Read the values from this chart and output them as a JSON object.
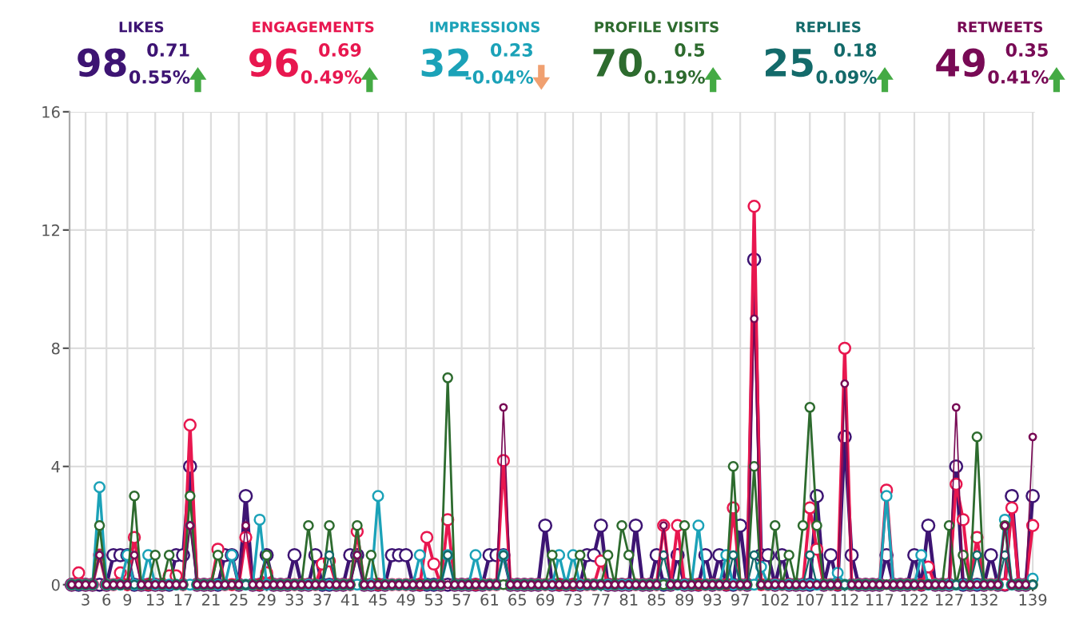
{
  "chart_data": {
    "type": "line",
    "marker": "circle",
    "line_style": "solid",
    "grid": true,
    "legend": "top",
    "categories": [
      null,
      null,
      "3",
      null,
      null,
      "6",
      null,
      null,
      "9",
      null,
      null,
      null,
      "13",
      null,
      null,
      null,
      "17",
      null,
      null,
      null,
      "21",
      null,
      null,
      null,
      "25",
      null,
      null,
      null,
      "29",
      null,
      null,
      null,
      "33",
      null,
      null,
      null,
      "37",
      null,
      null,
      null,
      "41",
      null,
      null,
      null,
      "45",
      null,
      null,
      null,
      "49",
      null,
      null,
      null,
      "53",
      null,
      null,
      null,
      "57",
      null,
      null,
      null,
      "61",
      null,
      null,
      null,
      "65",
      null,
      null,
      null,
      "69",
      null,
      null,
      null,
      "73",
      null,
      null,
      null,
      "77",
      null,
      null,
      null,
      "81",
      null,
      null,
      null,
      "85",
      null,
      null,
      null,
      "89",
      null,
      null,
      null,
      "93",
      null,
      null,
      null,
      "97",
      null,
      null,
      null,
      null,
      "102",
      null,
      null,
      null,
      null,
      "107",
      null,
      null,
      null,
      null,
      "112",
      null,
      null,
      null,
      null,
      "117",
      null,
      null,
      null,
      null,
      "122",
      null,
      null,
      null,
      null,
      "127",
      null,
      null,
      null,
      null,
      "132",
      null,
      null,
      null,
      null,
      null,
      null,
      "139"
    ],
    "ylim": [
      0,
      16
    ],
    "yticks": [
      0,
      4,
      8,
      12,
      16
    ],
    "series": [
      {
        "name": "LIKES",
        "color": "#3d1473",
        "values": [
          0,
          0,
          0,
          0,
          0,
          0,
          1,
          1,
          1,
          0,
          0,
          0,
          0,
          0,
          0,
          1,
          1,
          4,
          0,
          0,
          0,
          0,
          1,
          1,
          0,
          3,
          0,
          0,
          1,
          0,
          0,
          0,
          1,
          0,
          0,
          1,
          0,
          0,
          0,
          0,
          1,
          1,
          0,
          0,
          0,
          0,
          1,
          1,
          1,
          0,
          0,
          0,
          0,
          0,
          0,
          0,
          0,
          0,
          0,
          0,
          1,
          1,
          1,
          0,
          0,
          0,
          0,
          0,
          2,
          0,
          0,
          0,
          0,
          0,
          1,
          1,
          2,
          0,
          0,
          0,
          0,
          2,
          0,
          0,
          1,
          0,
          0,
          1,
          0,
          0,
          0,
          1,
          0,
          1,
          0,
          0,
          2,
          0,
          11,
          1,
          1,
          0,
          1,
          0,
          0,
          0,
          0,
          3,
          0,
          1,
          0,
          5,
          1,
          0,
          0,
          0,
          0,
          1,
          0,
          0,
          0,
          1,
          0,
          2,
          0,
          0,
          0,
          4,
          0,
          0,
          0,
          0,
          1,
          0,
          0,
          3,
          0,
          0,
          3
        ]
      },
      {
        "name": "ENGAGEMENTS",
        "color": "#e8174f",
        "values": [
          0,
          0.4,
          0,
          0,
          1,
          0,
          0,
          0.4,
          0,
          1.6,
          0,
          0,
          0,
          0,
          0.3,
          0.3,
          0,
          5.4,
          0,
          0,
          0,
          1.2,
          0,
          0,
          0,
          1.6,
          0,
          0,
          0.4,
          0,
          0,
          0,
          0,
          0,
          0,
          0,
          0.7,
          0.8,
          0,
          0,
          0,
          1.8,
          0,
          0,
          0,
          0,
          0,
          0,
          0,
          0,
          0,
          1.6,
          0.7,
          0,
          2.2,
          0,
          0,
          0,
          0,
          0,
          0,
          0,
          4.2,
          0,
          0,
          0,
          0,
          0,
          0,
          0,
          0,
          0,
          0,
          0,
          0,
          0,
          0.8,
          0,
          0,
          0,
          0,
          0,
          0,
          0,
          0,
          2,
          0,
          2,
          0,
          0,
          0,
          0,
          0,
          0,
          0,
          2.6,
          0,
          0,
          12.8,
          0,
          0,
          0,
          0,
          0,
          0,
          0,
          2.6,
          1.2,
          0,
          0,
          0,
          8,
          0,
          0,
          0,
          0,
          0,
          3.2,
          0,
          0,
          0,
          0,
          0,
          0.6,
          0,
          0,
          0,
          3.4,
          2.2,
          0,
          1.6,
          0,
          0,
          0,
          0,
          2.6,
          0,
          0,
          2
        ]
      },
      {
        "name": "IMPRESSIONS",
        "color": "#1ba2b8",
        "values": [
          0,
          0,
          0,
          0,
          3.3,
          0,
          0,
          0,
          1,
          0,
          0,
          1,
          0,
          0,
          0,
          0,
          0,
          0,
          0,
          0,
          0,
          0,
          0,
          1,
          0,
          0,
          0,
          2.2,
          0,
          0,
          0,
          0,
          0,
          0,
          0,
          0,
          0,
          0,
          0,
          0,
          0,
          0,
          0,
          0,
          3,
          0,
          0,
          0,
          0,
          0,
          1,
          0,
          0,
          0,
          1,
          0,
          0,
          0,
          1,
          0,
          0,
          0,
          1,
          0,
          0,
          0,
          0,
          0,
          0,
          0,
          1,
          0,
          1,
          0,
          0,
          0,
          0,
          0,
          0,
          0,
          0,
          0,
          0,
          0,
          0,
          0,
          0,
          0,
          0,
          0,
          2,
          0,
          0,
          0,
          1,
          0,
          0,
          0,
          0,
          0.6,
          0,
          0,
          0,
          0,
          0,
          0,
          0,
          0,
          0,
          0,
          0.4,
          0,
          0,
          0,
          0,
          0,
          0,
          3,
          0,
          0,
          0,
          0,
          1,
          0,
          0,
          0,
          0,
          0,
          0,
          0,
          0,
          0,
          0,
          0,
          2.2,
          0,
          0,
          0,
          0.2
        ]
      },
      {
        "name": "PROFILE VISITS",
        "color": "#2d6b2e",
        "values": [
          0,
          0,
          0,
          0,
          2,
          0,
          0,
          0,
          0,
          3,
          0,
          0,
          1,
          0,
          1,
          0,
          0,
          3,
          0,
          0,
          0,
          1,
          0,
          0,
          0,
          0,
          0,
          0,
          1,
          0,
          0,
          0,
          0,
          0,
          2,
          0,
          0,
          2,
          0,
          0,
          0,
          2,
          0,
          1,
          0,
          0,
          0,
          0,
          0,
          0,
          0,
          0,
          0,
          0,
          7,
          0,
          0,
          0,
          0,
          0,
          0,
          0,
          0,
          0,
          0,
          0,
          0,
          0,
          0,
          1,
          0,
          0,
          0,
          1,
          0,
          0,
          0,
          1,
          0,
          2,
          1,
          0,
          0,
          0,
          0,
          0,
          0,
          0,
          2,
          0,
          0,
          0,
          0,
          0,
          0,
          4,
          0,
          0,
          4,
          0,
          0,
          2,
          0,
          1,
          0,
          2,
          6,
          2,
          0,
          0,
          0,
          0,
          0,
          0,
          0,
          0,
          0,
          0,
          0,
          0,
          0,
          0,
          0,
          0,
          0,
          0,
          2,
          0,
          1,
          0,
          5,
          0,
          0,
          0,
          2,
          0,
          0,
          0,
          0
        ]
      },
      {
        "name": "REPLIES",
        "color": "#136a6a",
        "values": [
          0,
          0,
          0,
          0,
          1,
          0,
          0,
          0,
          0,
          0,
          0,
          0,
          0,
          0,
          0,
          0,
          0,
          2,
          0,
          0,
          0,
          0,
          0,
          0,
          0,
          0,
          0,
          0,
          0,
          0,
          0,
          0,
          0,
          0,
          0,
          0,
          0,
          1,
          0,
          0,
          0,
          1,
          0,
          0,
          0,
          0,
          0,
          0,
          0,
          0,
          0,
          0,
          0,
          0,
          1,
          0,
          0,
          0,
          0,
          0,
          0,
          0,
          1,
          0,
          0,
          0,
          0,
          0,
          0,
          0,
          0,
          0,
          0,
          0,
          0,
          0,
          0,
          0,
          0,
          0,
          0,
          0,
          0,
          0,
          0,
          1,
          0,
          0,
          0,
          0,
          0,
          0,
          0,
          0,
          0,
          1,
          0,
          0,
          1,
          0,
          0,
          0,
          0,
          0,
          0,
          0,
          1,
          0,
          0,
          0,
          0,
          0,
          0,
          0,
          0,
          0,
          0,
          0,
          0,
          0,
          0,
          0,
          0,
          0,
          0,
          0,
          0,
          0,
          0,
          0,
          1,
          0,
          0,
          0,
          1,
          0,
          0,
          0,
          0
        ]
      },
      {
        "name": "RETWEETS",
        "color": "#780a55",
        "values": [
          0,
          0,
          0,
          0,
          1,
          0,
          0,
          0,
          0,
          1,
          0,
          0,
          0,
          0,
          0,
          0,
          0,
          2,
          0,
          0,
          0,
          0,
          0,
          0,
          0,
          2,
          0,
          0,
          0,
          0,
          0,
          0,
          0,
          0,
          0,
          0,
          0,
          0,
          0,
          0,
          0,
          1,
          0,
          0,
          0,
          0,
          0,
          0,
          0,
          0,
          0,
          0,
          0,
          0,
          0,
          0,
          0,
          0,
          0,
          0,
          0,
          0,
          6,
          0,
          0,
          0,
          0,
          0,
          0,
          0,
          0,
          0,
          0,
          0,
          0,
          0,
          0,
          0,
          0,
          0,
          0,
          0,
          0,
          0,
          0,
          2,
          0,
          0,
          0,
          0,
          0,
          0,
          0,
          0,
          0,
          0,
          0,
          0,
          9,
          0,
          0,
          0,
          0,
          0,
          0,
          0,
          0,
          0,
          0,
          0,
          0,
          6.8,
          0,
          0,
          0,
          0,
          0,
          0,
          0,
          0,
          0,
          0,
          0,
          0,
          0,
          0,
          0,
          6,
          0,
          0,
          0,
          0,
          0,
          0,
          2,
          0,
          0,
          0,
          5
        ]
      }
    ],
    "annotations": [
      "98",
      "0.71",
      "0.55%",
      "96",
      "0.69",
      "0.49%",
      "32",
      "0.23",
      "-0.04%",
      "70",
      "0.5",
      "0.19%",
      "25",
      "0.18",
      "0.09%",
      "49",
      "0.35",
      "0.41%"
    ]
  }
}
